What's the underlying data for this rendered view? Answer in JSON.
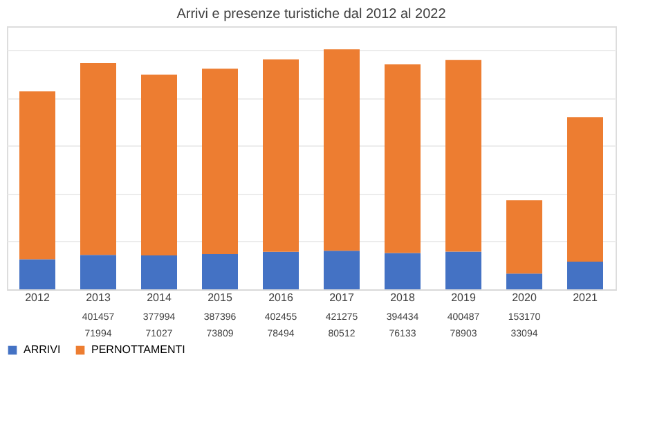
{
  "chart_data": {
    "type": "bar",
    "title": "Arrivi e presenze turistiche dal 2012 al 2022",
    "stacked": true,
    "relative": false,
    "legend": "bottom",
    "categories": [
      "2012",
      "2013",
      "2014",
      "2015",
      "2016",
      "2017",
      "2018",
      "2019",
      "2020",
      "2021"
    ],
    "series": [
      {
        "name": "ARRIVI",
        "color": "#4472c4",
        "values": [
          63000,
          71994,
          71027,
          73809,
          78494,
          80512,
          76133,
          78903,
          33094,
          58000
        ],
        "value_labels": [
          null,
          "71994",
          "71027",
          "73809",
          "78494",
          "80512",
          "76133",
          "78903",
          "33094",
          null
        ]
      },
      {
        "name": "PERNOTTAMENTI",
        "color": "#ed7d31",
        "values": [
          351000,
          401457,
          377994,
          387396,
          402455,
          421275,
          394434,
          400487,
          153170,
          302000
        ],
        "value_labels": [
          null,
          "401457",
          "377994",
          "387396",
          "402455",
          "421275",
          "394434",
          "400487",
          "153170",
          null
        ]
      }
    ]
  }
}
